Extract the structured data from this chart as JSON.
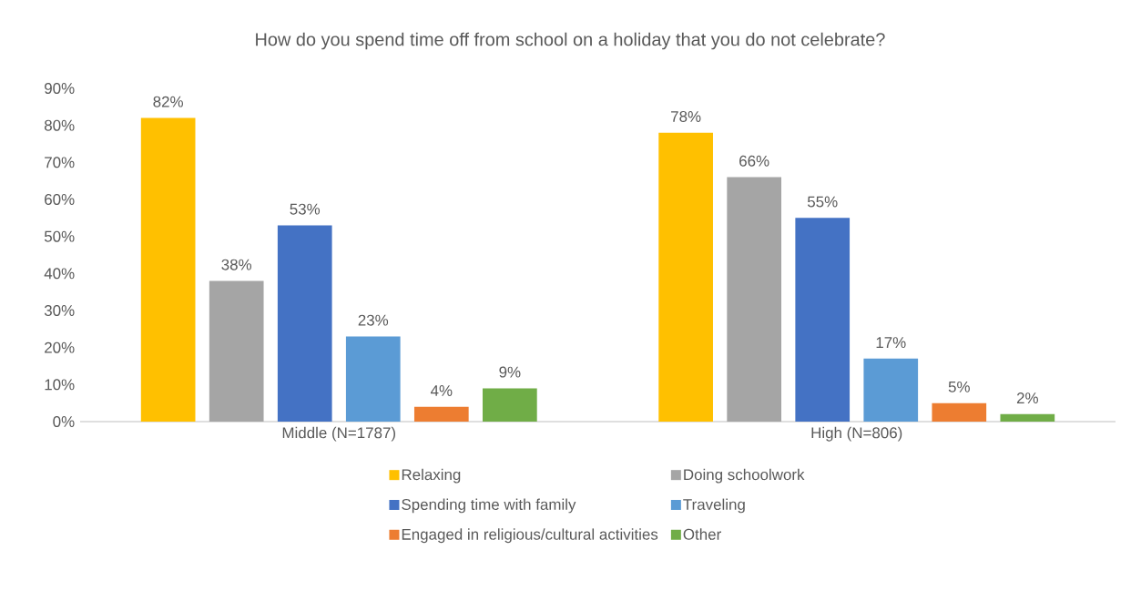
{
  "chart_data": {
    "type": "bar",
    "title": "How do you spend time off from school on a holiday that you do not celebrate?",
    "categories": [
      "Middle (N=1787)",
      "High (N=806)"
    ],
    "series": [
      {
        "name": "Relaxing",
        "color": "#ffc000",
        "values": [
          82,
          78
        ],
        "value_labels": [
          "82%",
          "78%"
        ]
      },
      {
        "name": "Doing schoolwork",
        "color": "#a5a5a5",
        "values": [
          38,
          66
        ],
        "value_labels": [
          "38%",
          "66%"
        ]
      },
      {
        "name": "Spending time with family",
        "color": "#4472c4",
        "values": [
          53,
          55
        ],
        "value_labels": [
          "53%",
          "55%"
        ]
      },
      {
        "name": "Traveling",
        "color": "#5b9bd5",
        "values": [
          23,
          17
        ],
        "value_labels": [
          "23%",
          "17%"
        ]
      },
      {
        "name": "Engaged in religious/cultural activities",
        "color": "#ed7d31",
        "values": [
          4,
          5
        ],
        "value_labels": [
          "4%",
          "5%"
        ]
      },
      {
        "name": "Other",
        "color": "#70ad47",
        "values": [
          9,
          2
        ],
        "value_labels": [
          "9%",
          "2%"
        ]
      }
    ],
    "ylim": [
      0,
      90
    ],
    "yticks": [
      {
        "value": 0,
        "label": "0%"
      },
      {
        "value": 10,
        "label": "10%"
      },
      {
        "value": 20,
        "label": "20%"
      },
      {
        "value": 30,
        "label": "30%"
      },
      {
        "value": 40,
        "label": "40%"
      },
      {
        "value": 50,
        "label": "50%"
      },
      {
        "value": 60,
        "label": "60%"
      },
      {
        "value": 70,
        "label": "70%"
      },
      {
        "value": 80,
        "label": "80%"
      },
      {
        "value": 90,
        "label": "90%"
      }
    ],
    "legend": "bottom"
  }
}
